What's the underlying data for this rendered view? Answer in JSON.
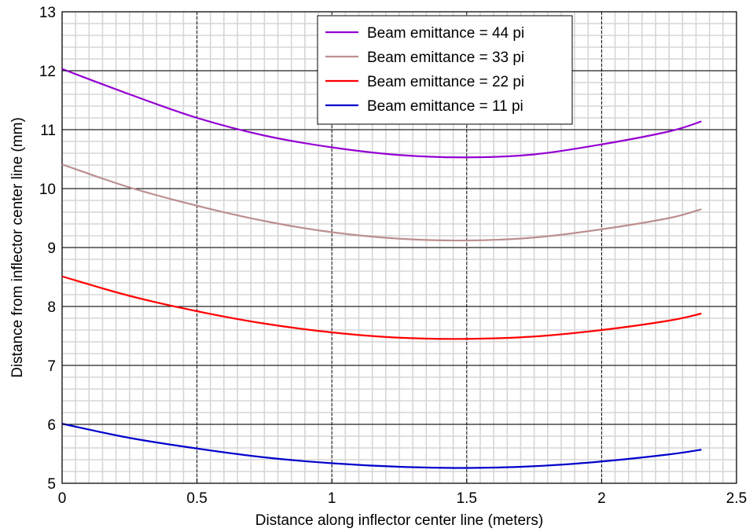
{
  "chart_data": {
    "type": "line",
    "title": "",
    "xlabel": "Distance along inflector center line (meters)",
    "ylabel": "Distance from inflector center line (mm)",
    "xlim": [
      0,
      2.5
    ],
    "ylim": [
      5,
      13
    ],
    "x_ticks": [
      "0",
      "0.5",
      "1",
      "1.5",
      "2",
      "2.5"
    ],
    "y_ticks": [
      "5",
      "6",
      "7",
      "8",
      "9",
      "10",
      "11",
      "12",
      "13"
    ],
    "grid": true,
    "legend_position": "top-center",
    "series": [
      {
        "name": "Beam emittance = 44 pi",
        "color": "#9400d3",
        "points": [
          [
            0,
            12.03
          ],
          [
            0.25,
            11.6
          ],
          [
            0.5,
            11.2
          ],
          [
            0.75,
            10.9
          ],
          [
            1.0,
            10.7
          ],
          [
            1.25,
            10.57
          ],
          [
            1.5,
            10.53
          ],
          [
            1.75,
            10.58
          ],
          [
            2.0,
            10.75
          ],
          [
            2.25,
            10.97
          ],
          [
            2.37,
            11.14
          ]
        ]
      },
      {
        "name": "Beam emittance = 33 pi",
        "color": "#bc8f8f",
        "points": [
          [
            0,
            10.41
          ],
          [
            0.25,
            10.02
          ],
          [
            0.5,
            9.71
          ],
          [
            0.75,
            9.45
          ],
          [
            1.0,
            9.26
          ],
          [
            1.25,
            9.15
          ],
          [
            1.5,
            9.12
          ],
          [
            1.75,
            9.17
          ],
          [
            2.0,
            9.31
          ],
          [
            2.25,
            9.5
          ],
          [
            2.37,
            9.65
          ]
        ]
      },
      {
        "name": "Beam emittance = 22 pi",
        "color": "#ff0000",
        "points": [
          [
            0,
            8.51
          ],
          [
            0.25,
            8.18
          ],
          [
            0.5,
            7.92
          ],
          [
            0.75,
            7.71
          ],
          [
            1.0,
            7.56
          ],
          [
            1.25,
            7.47
          ],
          [
            1.5,
            7.45
          ],
          [
            1.75,
            7.49
          ],
          [
            2.0,
            7.6
          ],
          [
            2.25,
            7.76
          ],
          [
            2.37,
            7.88
          ]
        ]
      },
      {
        "name": "Beam emittance = 11 pi",
        "color": "#0000cd",
        "points": [
          [
            0,
            6.01
          ],
          [
            0.25,
            5.77
          ],
          [
            0.5,
            5.59
          ],
          [
            0.75,
            5.44
          ],
          [
            1.0,
            5.34
          ],
          [
            1.25,
            5.28
          ],
          [
            1.5,
            5.26
          ],
          [
            1.75,
            5.29
          ],
          [
            2.0,
            5.37
          ],
          [
            2.25,
            5.49
          ],
          [
            2.37,
            5.57
          ]
        ]
      }
    ]
  }
}
